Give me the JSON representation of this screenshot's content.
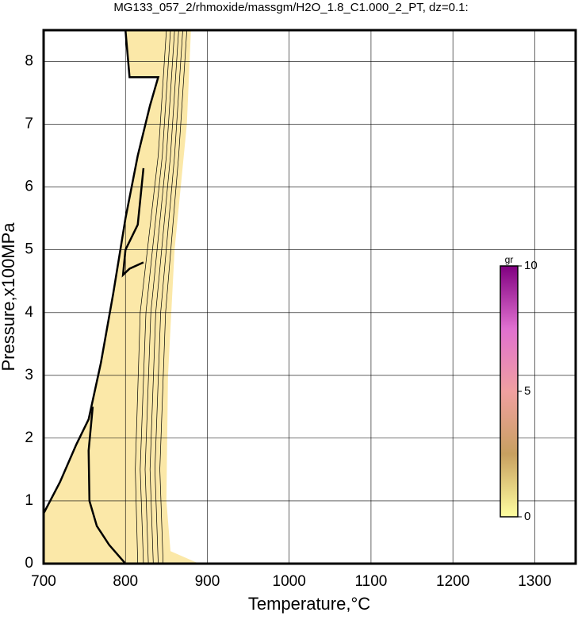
{
  "chart_data": {
    "type": "contour",
    "title": "MG133_057_2/rhmoxide/massgm/H2O_1.8_C1.000_2_PT, dz=0.1:",
    "x_label": "Temperature,°C",
    "y_label": "Pressure,x100MPa",
    "xlim": [
      700,
      1350
    ],
    "xticks": [
      700,
      800,
      900,
      1000,
      1100,
      1200,
      1300
    ],
    "ylim": [
      0,
      8.5
    ],
    "yticks": [
      0,
      1,
      2,
      3,
      4,
      5,
      6,
      7,
      8
    ],
    "grid": true,
    "region": {
      "color": "#fbe8a8",
      "x": [
        700,
        700,
        720,
        740,
        755,
        770,
        785,
        800,
        815,
        830,
        840,
        805,
        800,
        880,
        875,
        860,
        852,
        850,
        855,
        890
      ],
      "y": [
        0,
        0.8,
        1.3,
        1.9,
        2.3,
        3.2,
        4.3,
        5.5,
        6.5,
        7.3,
        7.75,
        7.75,
        8.5,
        8.5,
        7,
        5,
        3,
        1,
        0.2,
        0
      ]
    },
    "lines": [
      {
        "width": 2.5,
        "x": [
          700,
          720,
          740,
          755,
          770,
          785,
          800,
          815,
          830,
          840,
          805,
          800
        ],
        "y": [
          0.8,
          1.3,
          1.9,
          2.3,
          3.2,
          4.3,
          5.5,
          6.5,
          7.3,
          7.75,
          7.75,
          8.5
        ]
      },
      {
        "width": 2.5,
        "x": [
          760,
          755,
          756,
          765,
          780,
          800
        ],
        "y": [
          2.5,
          1.8,
          1.0,
          0.6,
          0.3,
          0
        ]
      },
      {
        "width": 2.5,
        "x": [
          822,
          815,
          800,
          797,
          805,
          822
        ],
        "y": [
          6.3,
          5.4,
          5.0,
          4.6,
          4.7,
          4.8
        ]
      },
      {
        "width": 0.7,
        "x": [
          815,
          812,
          818,
          840,
          850
        ],
        "y": [
          0,
          1.5,
          4,
          6.5,
          8.5
        ]
      },
      {
        "width": 0.7,
        "x": [
          822,
          818,
          825,
          845,
          855
        ],
        "y": [
          0,
          1.5,
          4,
          6.5,
          8.5
        ]
      },
      {
        "width": 0.7,
        "x": [
          828,
          824,
          831,
          850,
          860
        ],
        "y": [
          0,
          1.5,
          4,
          6.5,
          8.5
        ]
      },
      {
        "width": 0.7,
        "x": [
          834,
          830,
          837,
          855,
          865
        ],
        "y": [
          0,
          1.5,
          4,
          6.5,
          8.5
        ]
      },
      {
        "width": 0.7,
        "x": [
          840,
          836,
          843,
          860,
          870
        ],
        "y": [
          0,
          1.5,
          4,
          6.5,
          8.5
        ]
      },
      {
        "width": 0.7,
        "x": [
          846,
          842,
          849,
          865,
          875
        ],
        "y": [
          0,
          1.5,
          4,
          6.5,
          8.5
        ]
      }
    ],
    "colorbar": {
      "label": "gr",
      "lim": [
        0,
        10
      ],
      "ticks": [
        0,
        5,
        10
      ],
      "colors": [
        "#ffffa0",
        "#c8a060",
        "#f0a0a0",
        "#e070d0",
        "#800080"
      ]
    }
  }
}
